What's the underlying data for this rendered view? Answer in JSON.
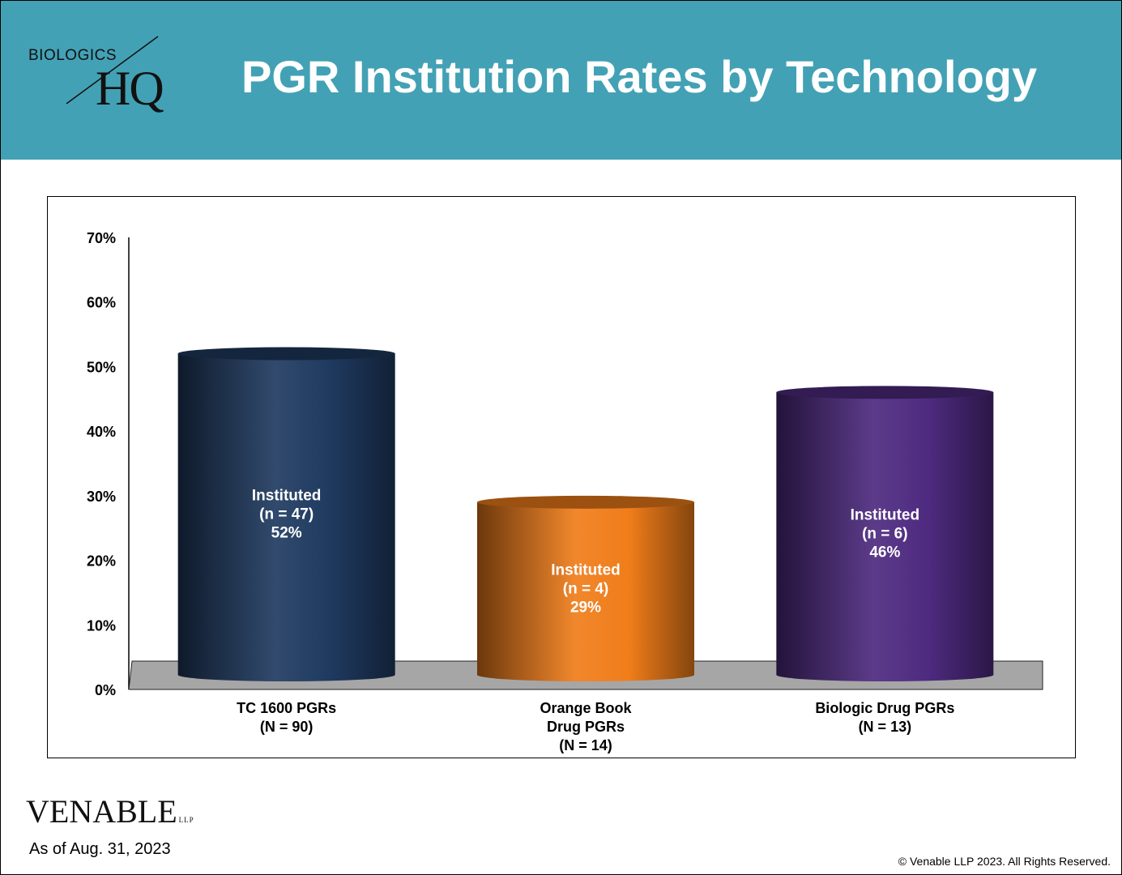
{
  "header": {
    "logo_top": "BIOLOGICS",
    "logo_bottom": "HQ",
    "title": "PGR Institution Rates by Technology"
  },
  "footer": {
    "brand": "VENABLE",
    "brand_suffix": "LLP",
    "as_of": "As of Aug. 31, 2023",
    "copyright": "© Venable LLP 2023. All Rights Reserved."
  },
  "colors": {
    "header_bg": "#43a1b5",
    "floor": "#a6a6a6",
    "bar1": "#1f3a60",
    "bar2": "#f07d1a",
    "bar3": "#4e2a80"
  },
  "chart_data": {
    "type": "bar",
    "title": "",
    "xlabel": "",
    "ylabel": "",
    "ylim": [
      0,
      70
    ],
    "yticks": [
      "0%",
      "10%",
      "20%",
      "30%",
      "40%",
      "50%",
      "60%",
      "70%"
    ],
    "categories": [
      [
        "TC 1600 PGRs",
        "(N = 90)"
      ],
      [
        "Orange Book",
        "Drug PGRs",
        "(N = 14)"
      ],
      [
        "Biologic Drug PGRs",
        "(N = 13)"
      ]
    ],
    "values": [
      52,
      29,
      46
    ],
    "data_labels": [
      [
        "Instituted",
        "(n = 47)",
        "52%"
      ],
      [
        "Instituted",
        "(n = 4)",
        "29%"
      ],
      [
        "Instituted",
        "(n = 6)",
        "46%"
      ]
    ],
    "style": "3d-cylinder",
    "grid": false,
    "legend": "none"
  }
}
